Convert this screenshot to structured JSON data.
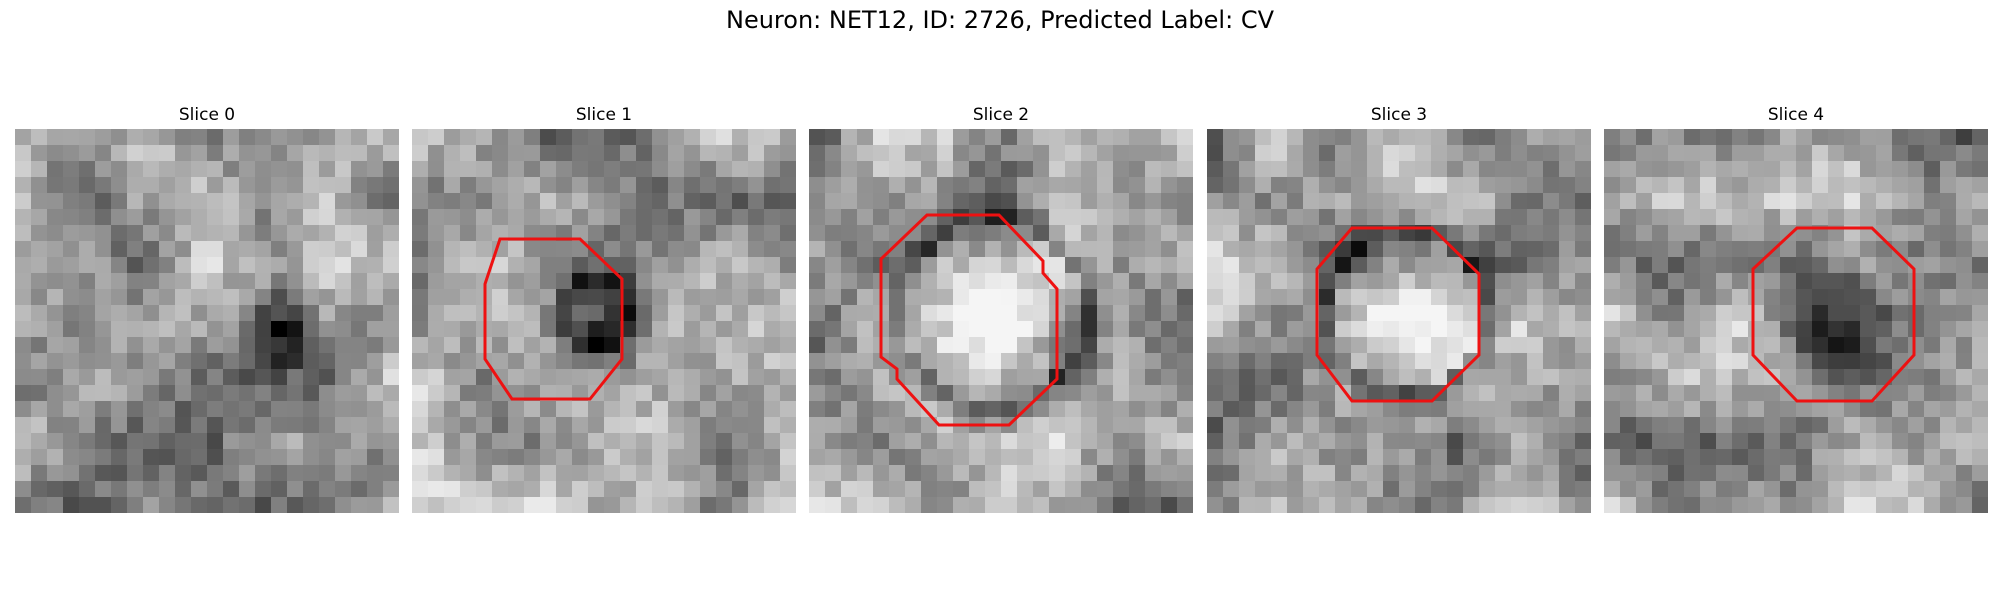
{
  "figure": {
    "title": "Neuron: NET12, ID: 2726, Predicted Label: CV"
  },
  "panels": [
    {
      "title": "Slice 0",
      "has_contour": false
    },
    {
      "title": "Slice 1",
      "has_contour": true
    },
    {
      "title": "Slice 2",
      "has_contour": true
    },
    {
      "title": "Slice 3",
      "has_contour": true
    },
    {
      "title": "Slice 4",
      "has_contour": true
    }
  ],
  "colors": {
    "contour": "#ee1111",
    "colormap": "gray"
  }
}
